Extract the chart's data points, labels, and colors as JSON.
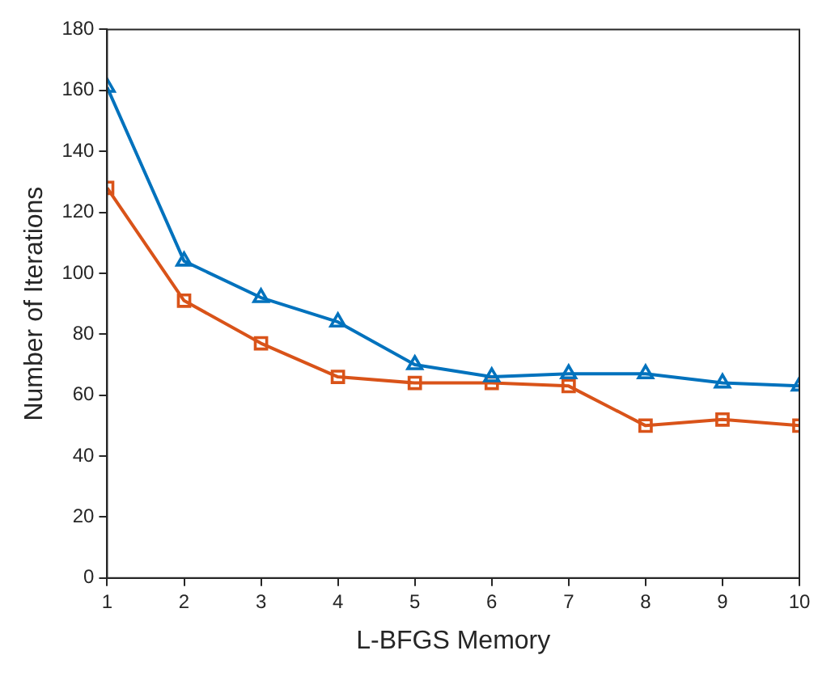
{
  "chart_data": {
    "type": "line",
    "xlabel": "L-BFGS Memory",
    "ylabel": "Number of Iterations",
    "x": [
      1,
      2,
      3,
      4,
      5,
      6,
      7,
      8,
      9,
      10
    ],
    "series": [
      {
        "color": "#0072bd",
        "marker": "triangle",
        "values": [
          161,
          104,
          92,
          84,
          70,
          66,
          67,
          67,
          64,
          63
        ]
      },
      {
        "color": "#d95319",
        "marker": "square",
        "values": [
          128,
          91,
          77,
          66,
          64,
          64,
          63,
          50,
          52,
          50
        ]
      }
    ],
    "xlim": [
      1,
      10
    ],
    "xticks": [
      1,
      2,
      3,
      4,
      5,
      6,
      7,
      8,
      9,
      10
    ],
    "ylim": [
      0,
      180
    ],
    "yticks": [
      0,
      20,
      40,
      60,
      80,
      100,
      120,
      140,
      160,
      180
    ],
    "grid": false,
    "legend": false,
    "line_style": "solid"
  }
}
